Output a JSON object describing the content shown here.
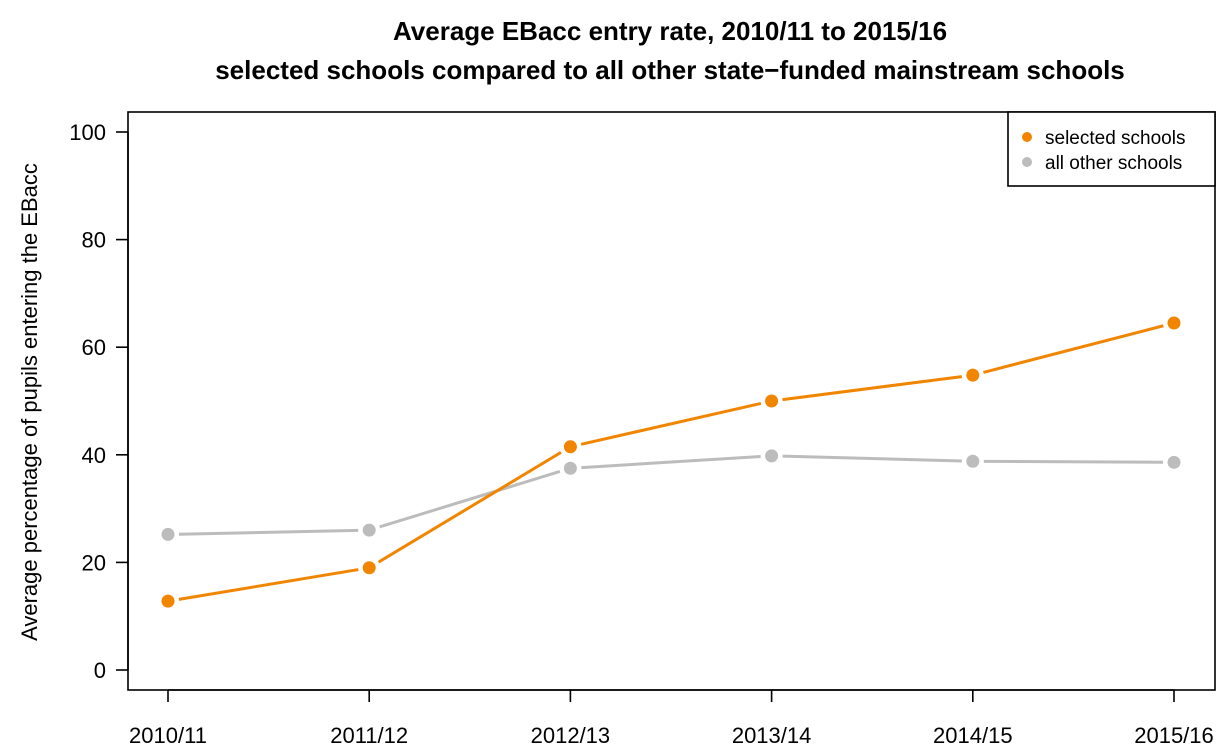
{
  "chart_data": {
    "type": "line",
    "title": "Average EBacc entry rate, 2010/11 to 2015/16",
    "subtitle": "selected schools compared to all other state−funded mainstream schools",
    "xlabel": "",
    "ylabel": "Average percentage of pupils entering the EBacc",
    "categories": [
      "2010/11",
      "2011/12",
      "2012/13",
      "2013/14",
      "2014/15",
      "2015/16"
    ],
    "ylim": [
      0,
      100
    ],
    "yticks": [
      "0",
      "20",
      "40",
      "60",
      "80",
      "100"
    ],
    "grid": false,
    "legend_position": "top-right",
    "series": [
      {
        "name": "selected schools",
        "color": "#f28500",
        "values": [
          12.8,
          19.0,
          41.5,
          50.0,
          54.8,
          64.5
        ]
      },
      {
        "name": "all other schools",
        "color": "#bcbcbc",
        "values": [
          25.2,
          26.0,
          37.5,
          39.8,
          38.8,
          38.6
        ]
      }
    ]
  }
}
